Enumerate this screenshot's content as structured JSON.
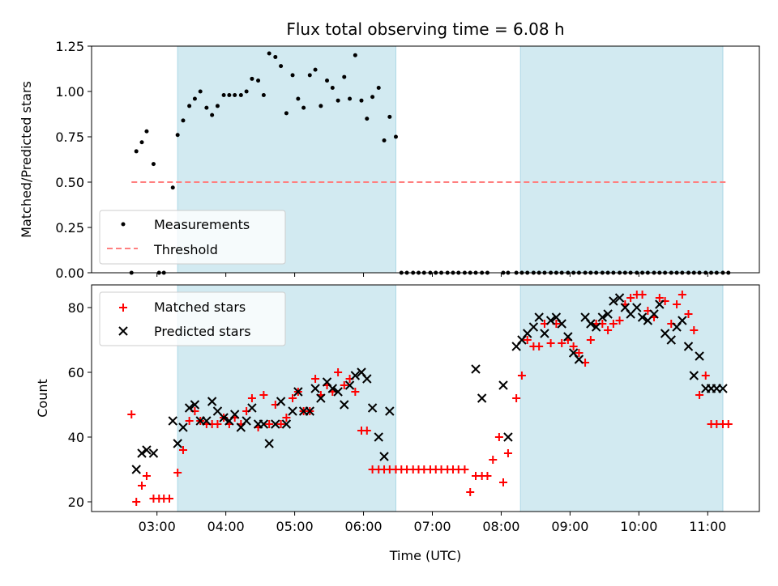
{
  "title": "Flux total observing time = 6.08 h",
  "chart_data": [
    {
      "type": "scatter",
      "panel": "top",
      "ylabel": "Matched/Predicted stars",
      "ylim": [
        0,
        1.25
      ],
      "yticks": [
        "0.00",
        "0.25",
        "0.50",
        "0.75",
        "1.00",
        "1.25"
      ],
      "xlim": [
        2.05,
        11.75
      ],
      "observing_windows": [
        [
          3.3,
          6.47
        ],
        [
          8.28,
          11.22
        ]
      ],
      "window_color": "#add8e6",
      "series": [
        {
          "name": "Measurements",
          "color": "#000000",
          "marker": "dot",
          "x": [
            2.63,
            2.7,
            2.78,
            2.85,
            2.95,
            3.03,
            3.1,
            3.23,
            3.3,
            3.38,
            3.47,
            3.55,
            3.63,
            3.72,
            3.8,
            3.88,
            3.97,
            4.05,
            4.13,
            4.22,
            4.3,
            4.38,
            4.47,
            4.55,
            4.63,
            4.72,
            4.8,
            4.88,
            4.97,
            5.05,
            5.13,
            5.22,
            5.3,
            5.38,
            5.47,
            5.55,
            5.63,
            5.72,
            5.8,
            5.88,
            5.97,
            6.05,
            6.13,
            6.22,
            6.3,
            6.38,
            6.47,
            6.55,
            6.63,
            6.72,
            6.8,
            6.88,
            6.97,
            7.05,
            7.13,
            7.22,
            7.3,
            7.38,
            7.47,
            7.55,
            7.63,
            7.72,
            7.8,
            8.03,
            8.1,
            8.22,
            8.3,
            8.38,
            8.47,
            8.55,
            8.63,
            8.72,
            8.8,
            8.88,
            8.97,
            9.05,
            9.13,
            9.22,
            9.3,
            9.38,
            9.47,
            9.55,
            9.63,
            9.72,
            9.8,
            9.88,
            9.97,
            10.05,
            10.13,
            10.22,
            10.3,
            10.38,
            10.47,
            10.55,
            10.63,
            10.72,
            10.8,
            10.88,
            10.97,
            11.05,
            11.13,
            11.22,
            11.3
          ],
          "y": [
            0.0,
            0.67,
            0.72,
            0.78,
            0.6,
            0.0,
            0.0,
            0.47,
            0.76,
            0.84,
            0.92,
            0.96,
            1.0,
            0.91,
            0.87,
            0.92,
            0.98,
            0.98,
            0.98,
            0.98,
            1.0,
            1.07,
            1.06,
            0.98,
            1.21,
            1.19,
            1.14,
            0.88,
            1.09,
            0.96,
            0.91,
            1.09,
            1.12,
            0.92,
            1.06,
            1.02,
            0.95,
            1.08,
            0.96,
            1.2,
            0.95,
            0.85,
            0.97,
            1.02,
            0.73,
            0.86,
            0.75,
            0.0,
            0.0,
            0.0,
            0.0,
            0.0,
            0.0,
            0.0,
            0.0,
            0.0,
            0.0,
            0.0,
            0.0,
            0.0,
            0.0,
            0.0,
            0.0,
            0.0,
            0.0,
            0.0,
            0.0,
            0.0,
            0.0,
            0.0,
            0.0,
            0.0,
            0.0,
            0.0,
            0.0,
            0.0,
            0.0,
            0.0,
            0.0,
            0.0,
            0.0,
            0.0,
            0.0,
            0.0,
            0.0,
            0.0,
            0.0,
            0.0,
            0.0,
            0.0,
            0.0,
            0.0,
            0.0,
            0.0,
            0.0,
            0.0,
            0.0,
            0.0,
            0.0,
            0.0,
            0.0,
            0.0,
            0.0
          ]
        },
        {
          "name": "Threshold",
          "color": "#ff7f7f",
          "line": "dashed",
          "x": [
            2.63,
            11.3
          ],
          "y": [
            0.5,
            0.5
          ]
        }
      ],
      "legend": "lower-left"
    },
    {
      "type": "scatter",
      "panel": "bottom",
      "xlabel": "Time (UTC)",
      "ylabel": "Count",
      "ylim": [
        17,
        87
      ],
      "yticks": [
        "20",
        "40",
        "60",
        "80"
      ],
      "xlim": [
        2.05,
        11.75
      ],
      "xticks": [
        "03:00",
        "04:00",
        "05:00",
        "06:00",
        "07:00",
        "08:00",
        "09:00",
        "10:00",
        "11:00"
      ],
      "observing_windows": [
        [
          3.3,
          6.47
        ],
        [
          8.28,
          11.22
        ]
      ],
      "window_color": "#add8e6",
      "series": [
        {
          "name": "Matched stars",
          "color": "#ff0000",
          "marker": "plus",
          "x": [
            2.63,
            2.7,
            2.78,
            2.85,
            2.95,
            3.03,
            3.1,
            3.18,
            3.3,
            3.38,
            3.47,
            3.55,
            3.63,
            3.72,
            3.8,
            3.88,
            3.97,
            4.05,
            4.13,
            4.22,
            4.3,
            4.38,
            4.47,
            4.55,
            4.63,
            4.72,
            4.8,
            4.88,
            4.97,
            5.05,
            5.13,
            5.22,
            5.3,
            5.38,
            5.47,
            5.55,
            5.63,
            5.72,
            5.8,
            5.88,
            5.97,
            6.05,
            6.13,
            6.22,
            6.3,
            6.38,
            6.47,
            6.55,
            6.63,
            6.72,
            6.8,
            6.88,
            6.97,
            7.05,
            7.13,
            7.22,
            7.3,
            7.38,
            7.47,
            7.55,
            7.63,
            7.72,
            7.8,
            7.88,
            7.97,
            8.03,
            8.1,
            8.22,
            8.3,
            8.38,
            8.47,
            8.55,
            8.63,
            8.72,
            8.8,
            8.88,
            8.97,
            9.05,
            9.13,
            9.22,
            9.3,
            9.38,
            9.47,
            9.55,
            9.63,
            9.72,
            9.8,
            9.88,
            9.97,
            10.05,
            10.13,
            10.22,
            10.3,
            10.38,
            10.47,
            10.55,
            10.63,
            10.72,
            10.8,
            10.88,
            10.97,
            11.05,
            11.13,
            11.22,
            11.3
          ],
          "y": [
            47,
            20,
            25,
            28,
            21,
            21,
            21,
            21,
            29,
            36,
            45,
            48,
            45,
            44,
            44,
            44,
            46,
            44,
            46,
            44,
            48,
            52,
            43,
            53,
            44,
            50,
            44,
            46,
            52,
            54,
            48,
            48,
            58,
            53,
            56,
            54,
            60,
            56,
            58,
            54,
            42,
            42,
            30,
            30,
            30,
            30,
            30,
            30,
            30,
            30,
            30,
            30,
            30,
            30,
            30,
            30,
            30,
            30,
            30,
            23,
            28,
            28,
            28,
            33,
            40,
            26,
            35,
            52,
            59,
            70,
            68,
            68,
            75,
            69,
            75,
            69,
            70,
            68,
            66,
            63,
            70,
            75,
            75,
            73,
            75,
            76,
            81,
            83,
            84,
            84,
            79,
            77,
            83,
            82,
            75,
            81,
            84,
            78,
            73,
            53,
            59,
            44,
            44,
            44,
            44
          ],
          "x_fixed": true
        },
        {
          "name": "Predicted stars",
          "color": "#000000",
          "marker": "x",
          "x": [
            2.7,
            2.78,
            2.85,
            2.95,
            3.23,
            3.3,
            3.38,
            3.47,
            3.55,
            3.63,
            3.72,
            3.8,
            3.88,
            3.97,
            4.05,
            4.13,
            4.22,
            4.3,
            4.38,
            4.47,
            4.55,
            4.63,
            4.72,
            4.8,
            4.88,
            4.97,
            5.05,
            5.13,
            5.22,
            5.3,
            5.38,
            5.47,
            5.55,
            5.63,
            5.72,
            5.8,
            5.88,
            5.97,
            6.05,
            6.13,
            6.22,
            6.3,
            6.38,
            7.63,
            7.72,
            8.03,
            8.1,
            8.22,
            8.3,
            8.38,
            8.47,
            8.55,
            8.63,
            8.72,
            8.8,
            8.88,
            8.97,
            9.05,
            9.13,
            9.22,
            9.3,
            9.38,
            9.47,
            9.55,
            9.63,
            9.72,
            9.8,
            9.88,
            9.97,
            10.05,
            10.13,
            10.22,
            10.3,
            10.38,
            10.47,
            10.55,
            10.63,
            10.72,
            10.8,
            10.88,
            10.97,
            11.05,
            11.13,
            11.22
          ],
          "y": [
            30,
            35,
            36,
            35,
            45,
            38,
            43,
            49,
            50,
            45,
            45,
            51,
            48,
            46,
            45,
            47,
            43,
            45,
            49,
            44,
            44,
            38,
            44,
            51,
            44,
            48,
            54,
            48,
            48,
            55,
            52,
            57,
            55,
            54,
            50,
            56,
            59,
            60,
            58,
            49,
            40,
            34,
            48,
            61,
            52,
            56,
            40,
            68,
            70,
            72,
            74,
            77,
            72,
            76,
            77,
            75,
            71,
            66,
            64,
            77,
            75,
            74,
            77,
            78,
            82,
            83,
            80,
            78,
            80,
            77,
            76,
            78,
            81,
            72,
            70,
            74,
            76,
            68,
            59,
            65,
            55,
            55,
            55,
            55
          ]
        }
      ],
      "legend": "top-left"
    }
  ]
}
